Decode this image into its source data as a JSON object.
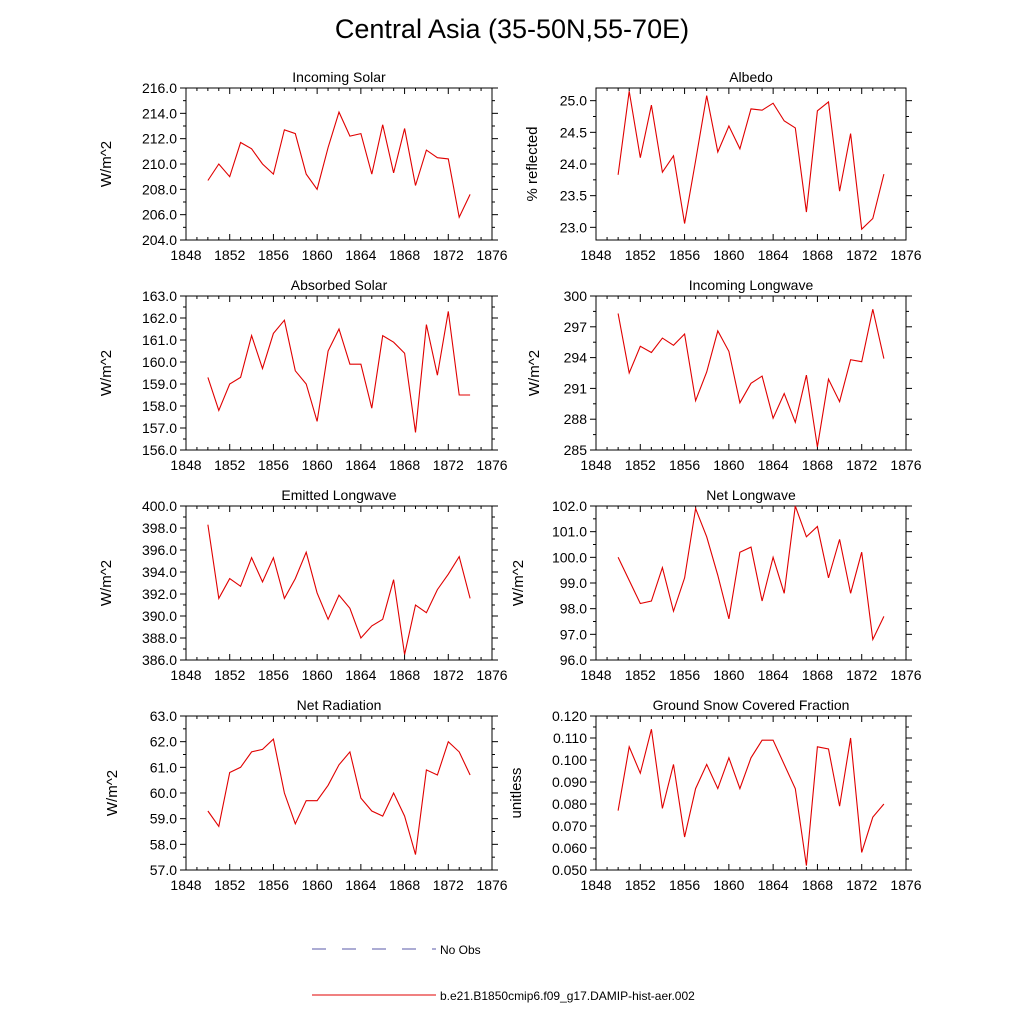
{
  "figure": {
    "title": "Central Asia (35-50N,55-70E)",
    "legend": [
      {
        "label": "No Obs",
        "color": "#5a5aa8",
        "style": "dashed"
      },
      {
        "label": "b.e21.B1850cmip6.f09_g17.DAMIP-hist-aer.002",
        "color": "#e00000",
        "style": "solid"
      }
    ]
  },
  "chart_data": [
    {
      "type": "line",
      "title": "Incoming Solar",
      "xlabel": "",
      "ylabel": "W/m^2",
      "xlim": [
        1848,
        1876
      ],
      "xticks": [
        1848,
        1852,
        1856,
        1860,
        1864,
        1868,
        1872,
        1876
      ],
      "ylim": [
        204,
        216
      ],
      "yticks": [
        204,
        206,
        208,
        210,
        212,
        214,
        216
      ],
      "ytick_labels": [
        "204.0",
        "206.0",
        "208.0",
        "210.0",
        "212.0",
        "214.0",
        "216.0"
      ],
      "series": [
        {
          "color": "#e00000",
          "x": [
            1850,
            1851,
            1852,
            1853,
            1854,
            1855,
            1856,
            1857,
            1858,
            1859,
            1860,
            1861,
            1862,
            1863,
            1864,
            1865,
            1866,
            1867,
            1868,
            1869,
            1870,
            1871,
            1872,
            1873,
            1874
          ],
          "y": [
            208.7,
            210.0,
            209.0,
            211.7,
            211.2,
            210.0,
            209.2,
            212.7,
            212.4,
            209.2,
            208.0,
            211.3,
            214.1,
            212.2,
            212.4,
            209.2,
            213.1,
            209.3,
            212.8,
            208.3,
            211.1,
            210.5,
            210.4,
            205.8,
            207.6
          ]
        }
      ]
    },
    {
      "type": "line",
      "title": "Albedo",
      "xlabel": "",
      "ylabel": "% reflected",
      "xlim": [
        1848,
        1876
      ],
      "xticks": [
        1848,
        1852,
        1856,
        1860,
        1864,
        1868,
        1872,
        1876
      ],
      "ylim": [
        22.8,
        25.2
      ],
      "yticks": [
        23.0,
        23.5,
        24.0,
        24.5,
        25.0
      ],
      "ytick_labels": [
        "23.0",
        "23.5",
        "24.0",
        "24.5",
        "25.0"
      ],
      "series": [
        {
          "color": "#e00000",
          "x": [
            1850,
            1851,
            1852,
            1853,
            1854,
            1855,
            1856,
            1857,
            1858,
            1859,
            1860,
            1861,
            1862,
            1863,
            1864,
            1865,
            1866,
            1867,
            1868,
            1869,
            1870,
            1871,
            1872,
            1873,
            1874
          ],
          "y": [
            23.83,
            25.15,
            24.1,
            24.93,
            23.87,
            24.13,
            23.06,
            24.05,
            25.08,
            24.19,
            24.6,
            24.24,
            24.87,
            24.85,
            24.96,
            24.68,
            24.57,
            23.24,
            24.84,
            24.98,
            23.57,
            24.48,
            22.97,
            23.14,
            23.84
          ]
        }
      ]
    },
    {
      "type": "line",
      "title": "Absorbed Solar",
      "xlabel": "",
      "ylabel": "W/m^2",
      "xlim": [
        1848,
        1876
      ],
      "xticks": [
        1848,
        1852,
        1856,
        1860,
        1864,
        1868,
        1872,
        1876
      ],
      "ylim": [
        156,
        163
      ],
      "yticks": [
        156,
        157,
        158,
        159,
        160,
        161,
        162,
        163
      ],
      "ytick_labels": [
        "156.0",
        "157.0",
        "158.0",
        "159.0",
        "160.0",
        "161.0",
        "162.0",
        "163.0"
      ],
      "series": [
        {
          "color": "#e00000",
          "x": [
            1850,
            1851,
            1852,
            1853,
            1854,
            1855,
            1856,
            1857,
            1858,
            1859,
            1860,
            1861,
            1862,
            1863,
            1864,
            1865,
            1866,
            1867,
            1868,
            1869,
            1870,
            1871,
            1872,
            1873,
            1874
          ],
          "y": [
            159.3,
            157.8,
            159.0,
            159.3,
            161.2,
            159.7,
            161.3,
            161.9,
            159.6,
            159.0,
            157.3,
            160.5,
            161.5,
            159.9,
            159.9,
            157.9,
            161.2,
            160.9,
            160.4,
            156.8,
            161.7,
            159.4,
            162.3,
            158.5,
            158.5
          ]
        }
      ]
    },
    {
      "type": "line",
      "title": "Incoming Longwave",
      "xlabel": "",
      "ylabel": "W/m^2",
      "xlim": [
        1848,
        1876
      ],
      "xticks": [
        1848,
        1852,
        1856,
        1860,
        1864,
        1868,
        1872,
        1876
      ],
      "ylim": [
        285,
        300
      ],
      "yticks": [
        285,
        288,
        291,
        294,
        297,
        300
      ],
      "ytick_labels": [
        "285",
        "288",
        "291",
        "294",
        "297",
        "300"
      ],
      "series": [
        {
          "color": "#e00000",
          "x": [
            1850,
            1851,
            1852,
            1853,
            1854,
            1855,
            1856,
            1857,
            1858,
            1859,
            1860,
            1861,
            1862,
            1863,
            1864,
            1865,
            1866,
            1867,
            1868,
            1869,
            1870,
            1871,
            1872,
            1873,
            1874
          ],
          "y": [
            298.3,
            292.5,
            295.1,
            294.5,
            295.9,
            295.2,
            296.3,
            289.8,
            292.6,
            296.6,
            294.6,
            289.6,
            291.5,
            292.2,
            288.1,
            290.5,
            287.7,
            292.3,
            285.3,
            291.9,
            289.7,
            293.8,
            293.6,
            298.7,
            293.9
          ]
        }
      ]
    },
    {
      "type": "line",
      "title": "Emitted Longwave",
      "xlabel": "",
      "ylabel": "W/m^2",
      "xlim": [
        1848,
        1876
      ],
      "xticks": [
        1848,
        1852,
        1856,
        1860,
        1864,
        1868,
        1872,
        1876
      ],
      "ylim": [
        386,
        400
      ],
      "yticks": [
        386,
        388,
        390,
        392,
        394,
        396,
        398,
        400
      ],
      "ytick_labels": [
        "386.0",
        "388.0",
        "390.0",
        "392.0",
        "394.0",
        "396.0",
        "398.0",
        "400.0"
      ],
      "series": [
        {
          "color": "#e00000",
          "x": [
            1850,
            1851,
            1852,
            1853,
            1854,
            1855,
            1856,
            1857,
            1858,
            1859,
            1860,
            1861,
            1862,
            1863,
            1864,
            1865,
            1866,
            1867,
            1868,
            1869,
            1870,
            1871,
            1872,
            1873,
            1874
          ],
          "y": [
            398.3,
            391.6,
            393.4,
            392.7,
            395.3,
            393.1,
            395.3,
            391.6,
            393.4,
            395.8,
            392.1,
            389.7,
            391.9,
            390.7,
            388.0,
            389.1,
            389.7,
            393.3,
            386.5,
            391.0,
            390.3,
            392.4,
            393.8,
            395.4,
            391.6
          ]
        }
      ]
    },
    {
      "type": "line",
      "title": "Net Longwave",
      "xlabel": "",
      "ylabel": "W/m^2",
      "xlim": [
        1848,
        1876
      ],
      "xticks": [
        1848,
        1852,
        1856,
        1860,
        1864,
        1868,
        1872,
        1876
      ],
      "ylim": [
        96,
        102
      ],
      "yticks": [
        96,
        97,
        98,
        99,
        100,
        101,
        102
      ],
      "ytick_labels": [
        "96.0",
        "97.0",
        "98.0",
        "99.0",
        "100.0",
        "101.0",
        "102.0"
      ],
      "series": [
        {
          "color": "#e00000",
          "x": [
            1850,
            1851,
            1852,
            1853,
            1854,
            1855,
            1856,
            1857,
            1858,
            1859,
            1860,
            1861,
            1862,
            1863,
            1864,
            1865,
            1866,
            1867,
            1868,
            1869,
            1870,
            1871,
            1872,
            1873,
            1874
          ],
          "y": [
            100.0,
            99.1,
            98.2,
            98.3,
            99.6,
            97.9,
            99.2,
            101.9,
            100.8,
            99.3,
            97.6,
            100.2,
            100.4,
            98.3,
            100.0,
            98.6,
            102.0,
            100.8,
            101.2,
            99.2,
            100.7,
            98.6,
            100.2,
            96.8,
            97.7
          ]
        }
      ]
    },
    {
      "type": "line",
      "title": "Net Radiation",
      "xlabel": "",
      "ylabel": "W/m^2",
      "xlim": [
        1848,
        1876
      ],
      "xticks": [
        1848,
        1852,
        1856,
        1860,
        1864,
        1868,
        1872,
        1876
      ],
      "ylim": [
        57,
        63
      ],
      "yticks": [
        57,
        58,
        59,
        60,
        61,
        62,
        63
      ],
      "ytick_labels": [
        "57.0",
        "58.0",
        "59.0",
        "60.0",
        "61.0",
        "62.0",
        "63.0"
      ],
      "series": [
        {
          "color": "#e00000",
          "x": [
            1850,
            1851,
            1852,
            1853,
            1854,
            1855,
            1856,
            1857,
            1858,
            1859,
            1860,
            1861,
            1862,
            1863,
            1864,
            1865,
            1866,
            1867,
            1868,
            1869,
            1870,
            1871,
            1872,
            1873,
            1874
          ],
          "y": [
            59.3,
            58.7,
            60.8,
            61.0,
            61.6,
            61.7,
            62.1,
            60.0,
            58.8,
            59.7,
            59.7,
            60.3,
            61.1,
            61.6,
            59.8,
            59.3,
            59.1,
            60.0,
            59.1,
            57.6,
            60.9,
            60.7,
            62.0,
            61.6,
            60.7
          ]
        }
      ]
    },
    {
      "type": "line",
      "title": "Ground Snow Covered Fraction",
      "xlabel": "",
      "ylabel": "unitless",
      "xlim": [
        1848,
        1876
      ],
      "xticks": [
        1848,
        1852,
        1856,
        1860,
        1864,
        1868,
        1872,
        1876
      ],
      "ylim": [
        0.05,
        0.12
      ],
      "yticks": [
        0.05,
        0.06,
        0.07,
        0.08,
        0.09,
        0.1,
        0.11,
        0.12
      ],
      "ytick_labels": [
        "0.050",
        "0.060",
        "0.070",
        "0.080",
        "0.090",
        "0.100",
        "0.110",
        "0.120"
      ],
      "series": [
        {
          "color": "#e00000",
          "x": [
            1850,
            1851,
            1852,
            1853,
            1854,
            1855,
            1856,
            1857,
            1858,
            1859,
            1860,
            1861,
            1862,
            1863,
            1864,
            1866,
            1867,
            1868,
            1869,
            1870,
            1871,
            1872,
            1873,
            1874
          ],
          "y": [
            0.077,
            0.106,
            0.094,
            0.114,
            0.078,
            0.098,
            0.065,
            0.087,
            0.098,
            0.087,
            0.101,
            0.087,
            0.101,
            0.109,
            0.109,
            0.087,
            0.052,
            0.106,
            0.105,
            0.079,
            0.11,
            0.058,
            0.074,
            0.08
          ]
        }
      ]
    }
  ]
}
